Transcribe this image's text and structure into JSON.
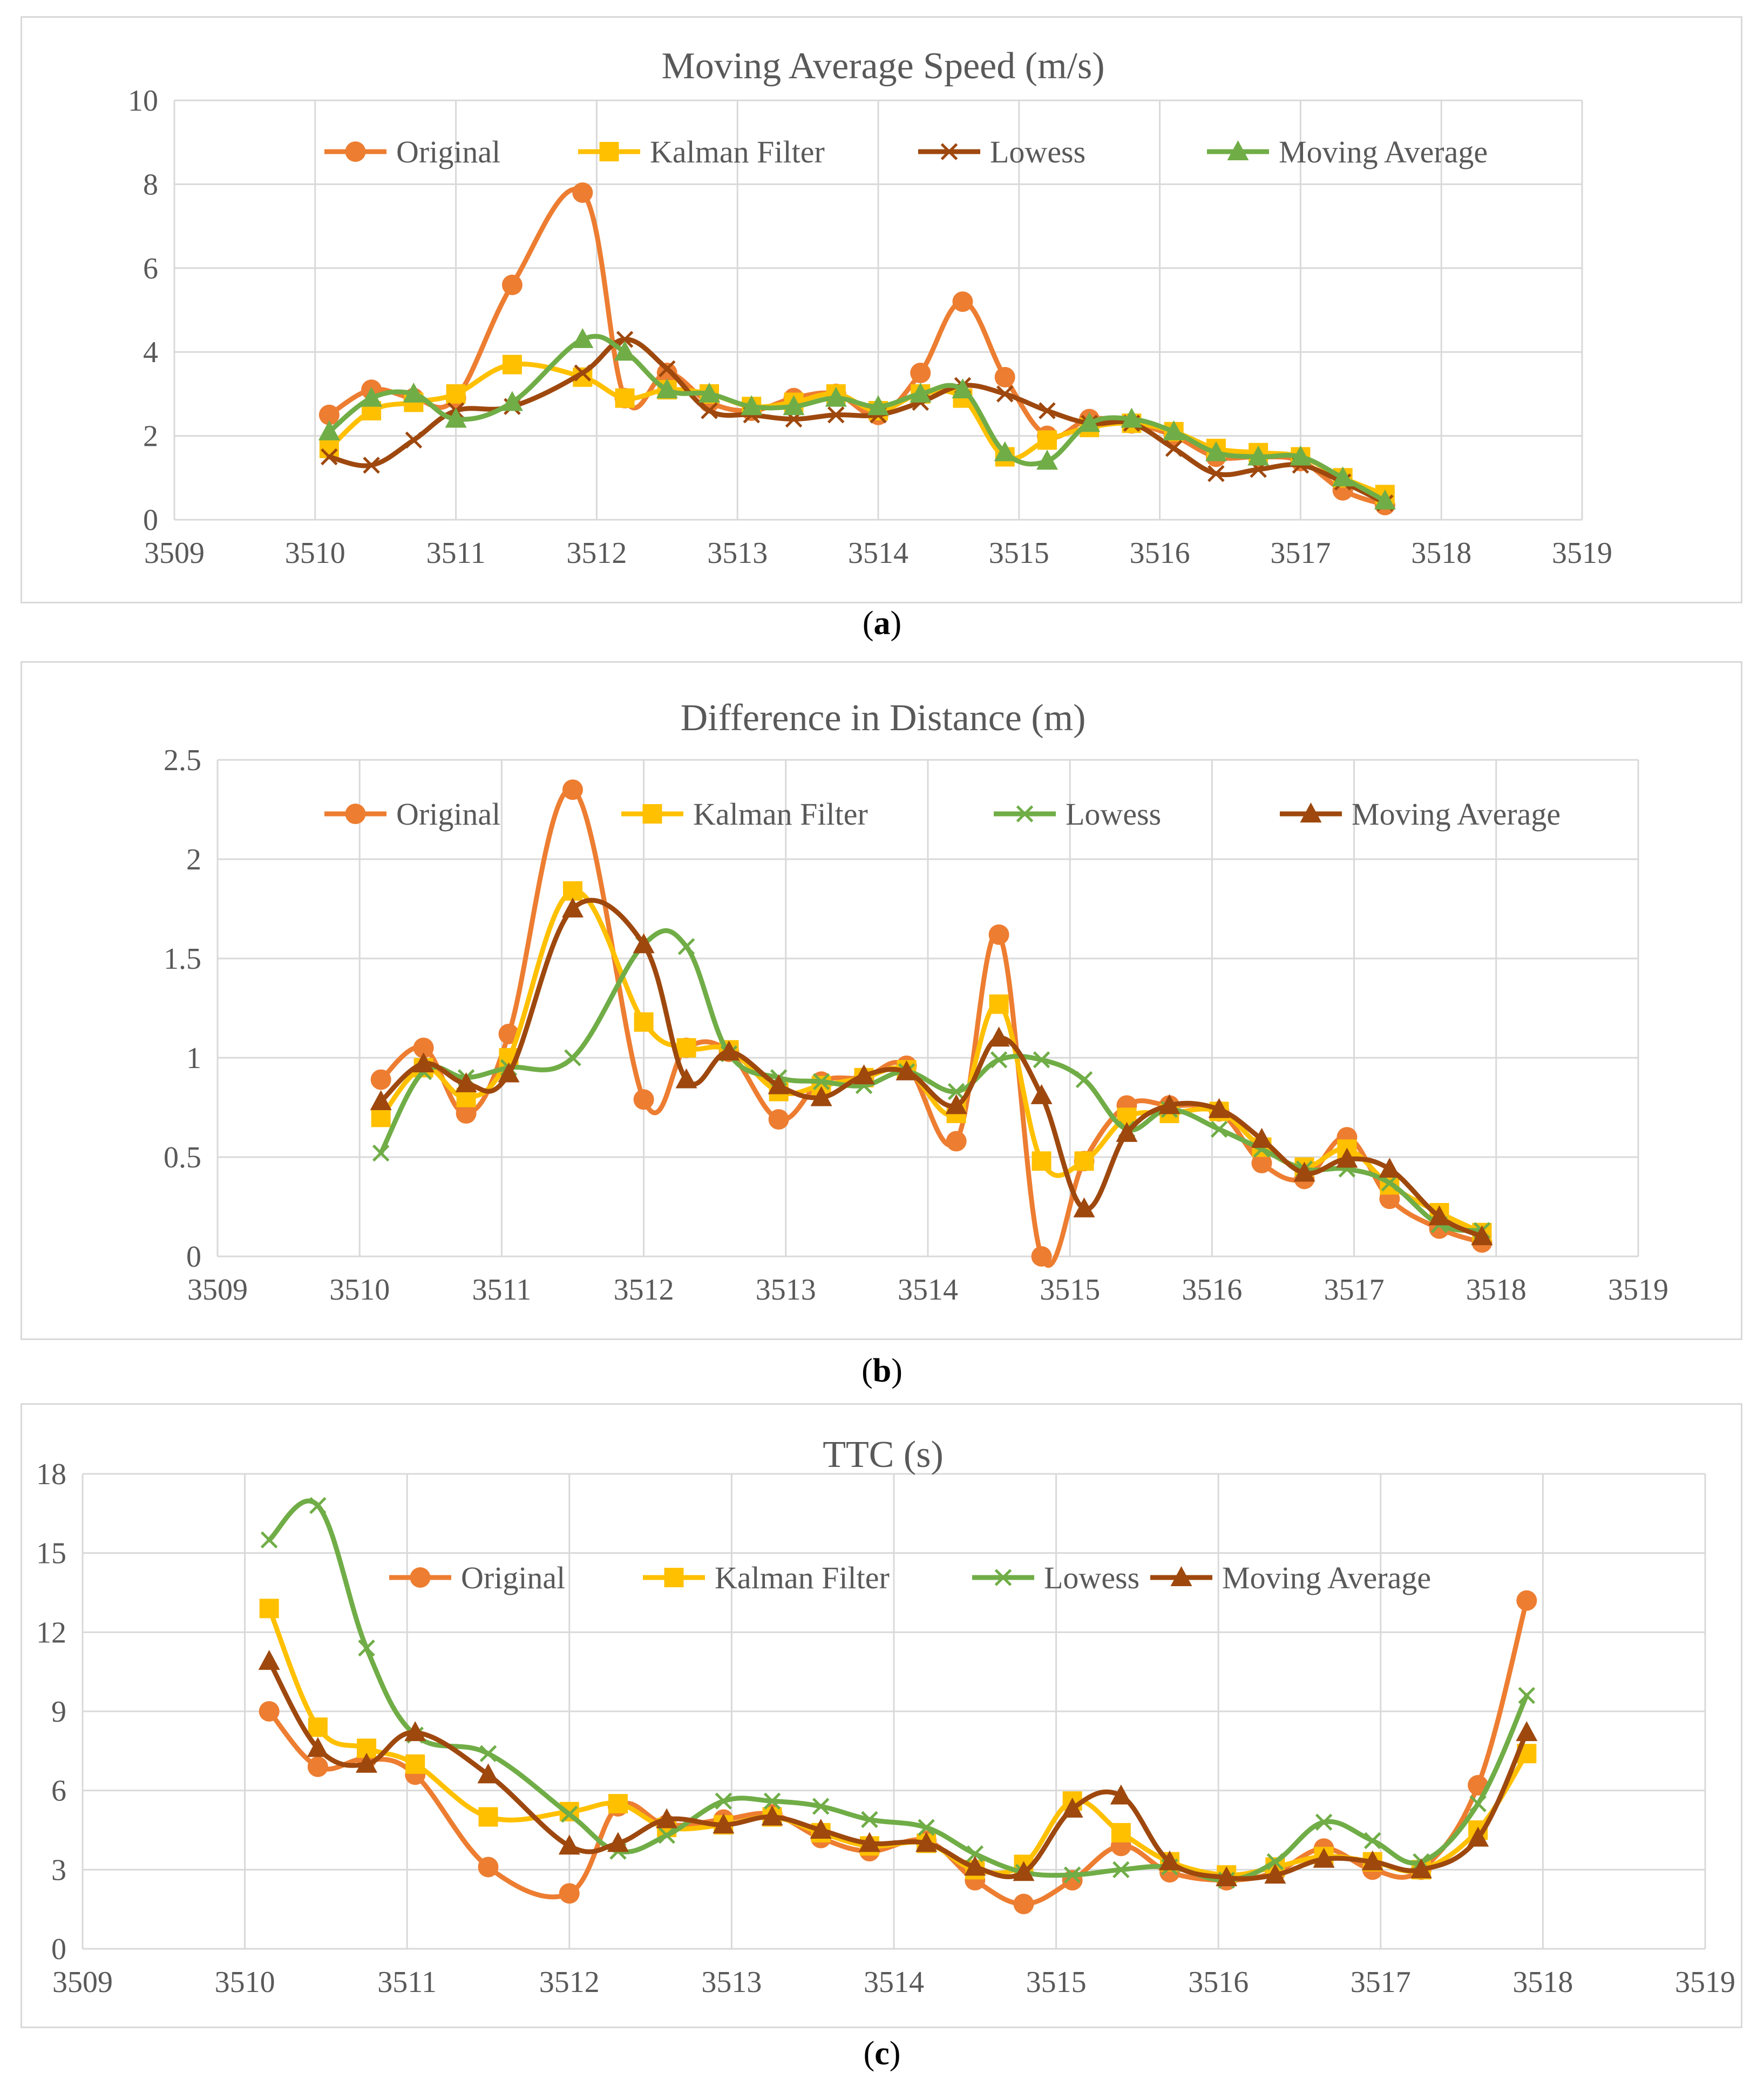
{
  "chart_data": [
    {
      "type": "line",
      "title": "Moving Average Speed (m/s)",
      "caption_letter": "a",
      "xlim": [
        3509,
        3519
      ],
      "ylim": [
        0,
        10
      ],
      "x_ticks": [
        3509,
        3510,
        3511,
        3512,
        3513,
        3514,
        3515,
        3516,
        3517,
        3518,
        3519
      ],
      "y_ticks": [
        0,
        2,
        4,
        6,
        8,
        10
      ],
      "x_tick_labels": [
        "3509",
        "3510",
        "3511",
        "3512",
        "3513",
        "3514",
        "3515",
        "3516",
        "3517",
        "3518",
        "3519"
      ],
      "y_tick_labels": [
        "0",
        "2",
        "4",
        "6",
        "8",
        "10"
      ],
      "legend_placement": "top",
      "x": [
        3510.1,
        3510.4,
        3510.7,
        3511.0,
        3511.4,
        3511.9,
        3512.2,
        3512.5,
        3512.8,
        3513.1,
        3513.4,
        3513.7,
        3514.0,
        3514.3,
        3514.6,
        3514.9,
        3515.2,
        3515.5,
        3515.8,
        3516.1,
        3516.4,
        3516.7,
        3517.0,
        3517.3,
        3517.6,
        3517.85
      ],
      "series": [
        {
          "name": "Original",
          "color": "#ED7D31",
          "marker": "circle",
          "values": [
            2.5,
            3.1,
            2.9,
            2.9,
            5.6,
            7.8,
            2.9,
            3.5,
            2.8,
            2.6,
            2.9,
            3.0,
            2.5,
            3.5,
            5.2,
            3.4,
            2.0,
            2.4,
            2.3,
            2.0,
            1.5,
            1.5,
            1.4,
            0.7,
            0.35,
            null
          ]
        },
        {
          "name": "Kalman Filter",
          "color": "#FFC000",
          "marker": "square",
          "values": [
            1.7,
            2.6,
            2.8,
            3.0,
            3.7,
            3.4,
            2.9,
            3.1,
            3.0,
            2.7,
            2.8,
            3.0,
            2.6,
            3.0,
            2.9,
            1.5,
            1.9,
            2.2,
            2.3,
            2.1,
            1.7,
            1.6,
            1.5,
            1.0,
            0.6,
            null
          ]
        },
        {
          "name": "Lowess",
          "color": "#9E480E",
          "marker": "x",
          "values": [
            1.5,
            1.3,
            1.9,
            2.6,
            2.7,
            3.5,
            4.3,
            3.6,
            2.6,
            2.5,
            2.4,
            2.5,
            2.5,
            2.8,
            3.2,
            3.0,
            2.6,
            2.3,
            2.3,
            1.7,
            1.1,
            1.2,
            1.3,
            0.9,
            0.4,
            null
          ]
        },
        {
          "name": "Moving Average",
          "color": "#70AD47",
          "marker": "triangle",
          "values": [
            2.1,
            2.9,
            3.0,
            2.4,
            2.8,
            4.3,
            4.0,
            3.1,
            3.0,
            2.7,
            2.7,
            2.9,
            2.7,
            3.0,
            3.1,
            1.6,
            1.4,
            2.3,
            2.4,
            2.1,
            1.6,
            1.5,
            1.5,
            1.0,
            0.45,
            null
          ]
        }
      ]
    },
    {
      "type": "line",
      "title": "Difference in Distance (m)",
      "caption_letter": "b",
      "xlim": [
        3509,
        3519
      ],
      "ylim": [
        0,
        2.5
      ],
      "x_ticks": [
        3509,
        3510,
        3511,
        3512,
        3513,
        3514,
        3515,
        3516,
        3517,
        3518,
        3519
      ],
      "y_ticks": [
        0,
        0.5,
        1,
        1.5,
        2,
        2.5
      ],
      "x_tick_labels": [
        "3509",
        "3510",
        "3511",
        "3512",
        "3513",
        "3514",
        "3515",
        "3516",
        "3517",
        "3518",
        "3519"
      ],
      "y_tick_labels": [
        "0",
        "0.5",
        "1",
        "1.5",
        "2",
        "2.5"
      ],
      "legend_placement": "top",
      "x": [
        3510.15,
        3510.45,
        3510.75,
        3511.05,
        3511.5,
        3512.0,
        3512.3,
        3512.6,
        3512.95,
        3513.25,
        3513.55,
        3513.85,
        3514.2,
        3514.5,
        3514.8,
        3515.1,
        3515.4,
        3515.7,
        3516.05,
        3516.35,
        3516.65,
        3516.95,
        3517.25,
        3517.6,
        3517.9
      ],
      "series": [
        {
          "name": "Original",
          "color": "#ED7D31",
          "marker": "circle",
          "values": [
            0.89,
            1.05,
            0.72,
            1.12,
            2.35,
            0.79,
            1.05,
            1.03,
            0.69,
            0.88,
            0.9,
            0.96,
            0.58,
            1.62,
            0.0,
            0.48,
            0.76,
            0.76,
            0.73,
            0.47,
            0.39,
            0.6,
            0.29,
            0.14,
            0.07
          ]
        },
        {
          "name": "Kalman Filter",
          "color": "#FFC000",
          "marker": "square",
          "values": [
            0.7,
            0.95,
            0.8,
            1.0,
            1.84,
            1.18,
            1.05,
            1.04,
            0.83,
            0.86,
            0.9,
            0.94,
            0.72,
            1.27,
            0.48,
            0.48,
            0.7,
            0.72,
            0.73,
            0.55,
            0.45,
            0.54,
            0.36,
            0.22,
            0.12
          ]
        },
        {
          "name": "Lowess",
          "color": "#70AD47",
          "marker": "x",
          "values": [
            0.52,
            0.93,
            0.9,
            0.95,
            1.0,
            1.57,
            1.56,
            1.02,
            0.9,
            0.88,
            0.86,
            0.93,
            0.83,
            0.99,
            0.99,
            0.89,
            0.64,
            0.74,
            0.64,
            0.54,
            0.44,
            0.44,
            0.37,
            0.16,
            0.13
          ]
        },
        {
          "name": "Moving Average",
          "color": "#9E480E",
          "marker": "triangle",
          "values": [
            0.78,
            0.97,
            0.87,
            0.92,
            1.75,
            1.57,
            0.89,
            1.03,
            0.86,
            0.8,
            0.91,
            0.93,
            0.76,
            1.1,
            0.81,
            0.24,
            0.62,
            0.76,
            0.74,
            0.59,
            0.42,
            0.49,
            0.44,
            0.2,
            0.1
          ]
        }
      ]
    },
    {
      "type": "line",
      "title": "TTC (s)",
      "caption_letter": "c",
      "xlim": [
        3509,
        3519
      ],
      "ylim": [
        0,
        18
      ],
      "x_ticks": [
        3509,
        3510,
        3511,
        3512,
        3513,
        3514,
        3515,
        3516,
        3517,
        3518,
        3519
      ],
      "y_ticks": [
        0,
        3,
        6,
        9,
        12,
        15,
        18
      ],
      "x_tick_labels": [
        "3509",
        "3510",
        "3511",
        "3512",
        "3513",
        "3514",
        "3515",
        "3516",
        "3517",
        "3518",
        "3519"
      ],
      "y_tick_labels": [
        "0",
        "3",
        "6",
        "9",
        "12",
        "15",
        "18"
      ],
      "legend_placement": "top",
      "x": [
        3510.15,
        3510.45,
        3510.75,
        3511.05,
        3511.5,
        3512.0,
        3512.3,
        3512.6,
        3512.95,
        3513.25,
        3513.55,
        3513.85,
        3514.2,
        3514.5,
        3514.8,
        3515.1,
        3515.4,
        3515.7,
        3516.05,
        3516.35,
        3516.65,
        3516.95,
        3517.25,
        3517.6,
        3517.9
      ],
      "series": [
        {
          "name": "Original",
          "color": "#ED7D31",
          "marker": "circle",
          "values": [
            9.0,
            6.9,
            7.2,
            6.6,
            3.1,
            2.1,
            5.4,
            4.7,
            4.9,
            5.1,
            4.2,
            3.7,
            4.1,
            2.6,
            1.7,
            2.6,
            3.9,
            2.9,
            2.6,
            2.9,
            3.8,
            3.0,
            3.0,
            6.2,
            13.2
          ]
        },
        {
          "name": "Kalman Filter",
          "color": "#FFC000",
          "marker": "square",
          "values": [
            12.9,
            8.4,
            7.6,
            7.0,
            5.0,
            5.2,
            5.5,
            4.6,
            4.7,
            5.0,
            4.4,
            3.9,
            4.0,
            3.0,
            3.2,
            5.6,
            4.4,
            3.3,
            2.8,
            3.1,
            3.5,
            3.3,
            3.0,
            4.5,
            7.4
          ]
        },
        {
          "name": "Lowess",
          "color": "#70AD47",
          "marker": "x",
          "values": [
            15.5,
            16.8,
            11.4,
            8.1,
            7.4,
            5.1,
            3.7,
            4.3,
            5.6,
            5.6,
            5.4,
            4.9,
            4.6,
            3.6,
            2.9,
            2.8,
            3.0,
            3.1,
            2.6,
            3.3,
            4.8,
            4.1,
            3.3,
            5.5,
            9.6
          ]
        },
        {
          "name": "Moving Average",
          "color": "#9E480E",
          "marker": "triangle",
          "values": [
            10.9,
            7.6,
            7.0,
            8.2,
            6.6,
            3.9,
            4.0,
            4.9,
            4.7,
            5.0,
            4.5,
            4.0,
            4.0,
            3.1,
            2.9,
            5.3,
            5.8,
            3.3,
            2.7,
            2.8,
            3.4,
            3.3,
            3.0,
            4.2,
            8.2
          ]
        }
      ]
    }
  ]
}
